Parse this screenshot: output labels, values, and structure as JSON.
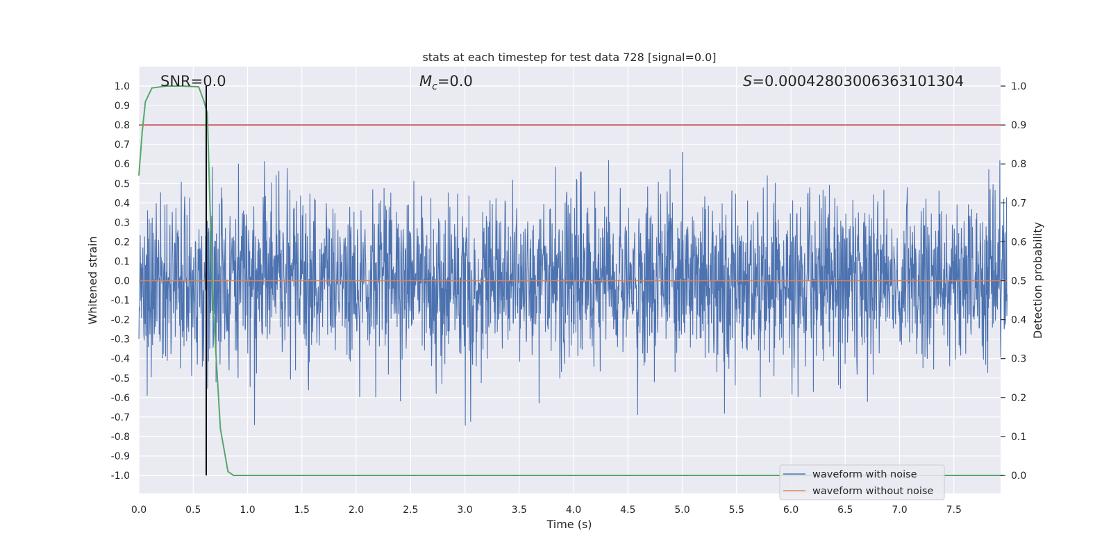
{
  "chart_data": {
    "type": "line",
    "title": "stats at each timestep for test data 728 [signal=0.0]",
    "xlabel": "Time (s)",
    "ylabel_left": "Whitened strain",
    "ylabel_right": "Detection probability",
    "xlim": [
      0.0,
      8.0
    ],
    "ylim_left": [
      -1.05,
      1.05
    ],
    "ylim_right": [
      -0.05,
      1.05
    ],
    "x_ticks": [
      "0.0",
      "0.5",
      "1.0",
      "1.5",
      "2.0",
      "2.5",
      "3.0",
      "3.5",
      "4.0",
      "4.5",
      "5.0",
      "5.5",
      "6.0",
      "6.5",
      "7.0",
      "7.5"
    ],
    "y_ticks_left": [
      "1.0",
      "0.9",
      "0.8",
      "0.7",
      "0.6",
      "0.5",
      "0.4",
      "0.3",
      "0.2",
      "0.1",
      "0.0",
      "-0.1",
      "-0.2",
      "-0.3",
      "-0.4",
      "-0.5",
      "-0.6",
      "-0.7",
      "-0.8",
      "-0.9",
      "-1.0"
    ],
    "y_ticks_right": [
      "1.0",
      "0.9",
      "0.8",
      "0.7",
      "0.6",
      "0.5",
      "0.4",
      "0.3",
      "0.2",
      "0.1",
      "0.0"
    ],
    "annotations": {
      "snr": "SNR=0.0",
      "mc_symbol": "M",
      "mc_sub": "c",
      "mc_value": "=0.0",
      "s_symbol": "S",
      "s_value": "=0.00042803006363101304"
    },
    "grid": true,
    "legend_position": "bottom-right",
    "series": [
      {
        "name": "waveform with noise",
        "color": "#4c72b0",
        "x_range": [
          0.0,
          7.99
        ],
        "amplitude_envelope_approx": [
          -0.92,
          1.0
        ]
      },
      {
        "name": "waveform without noise",
        "color": "#dd8452",
        "x_range": [
          0.0,
          7.99
        ],
        "values_constant": 0.0
      }
    ],
    "detection_probability": {
      "color": "#55a868",
      "x": [
        0.0,
        0.03,
        0.06,
        0.12,
        0.25,
        0.4,
        0.55,
        0.6,
        0.63,
        0.68,
        0.75,
        0.82,
        0.87,
        1.0,
        2.0,
        3.0,
        4.0,
        5.0,
        6.0,
        7.0,
        7.95
      ],
      "y": [
        0.77,
        0.88,
        0.96,
        0.995,
        1.0,
        1.0,
        0.998,
        0.96,
        0.93,
        0.45,
        0.12,
        0.01,
        0.0,
        0.0,
        0.0,
        0.0,
        0.0,
        0.0,
        0.0,
        0.0,
        0.0
      ]
    },
    "threshold_line": {
      "color": "#c44e52",
      "value_right_axis": 0.9
    },
    "marker_line": {
      "color": "#000000",
      "x": 0.62
    }
  }
}
